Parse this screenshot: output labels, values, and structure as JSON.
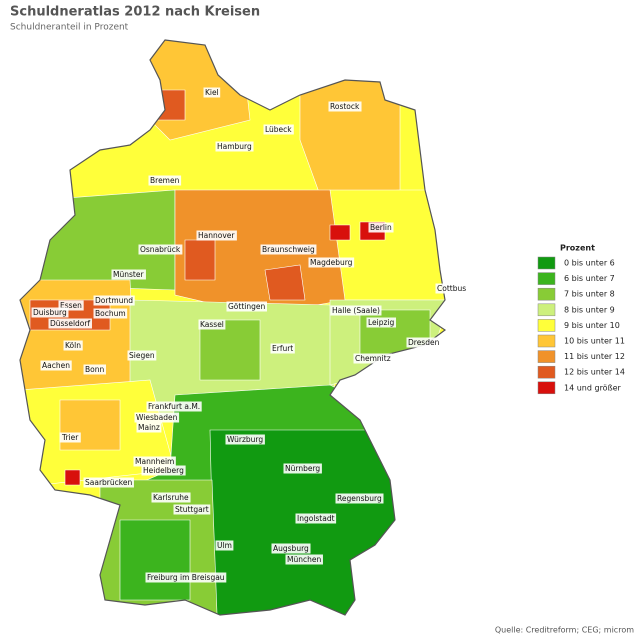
{
  "title": "Schuldneratlas 2012 nach Kreisen",
  "subtitle": "Schuldneranteil in Prozent",
  "legend": {
    "title": "Prozent",
    "items": [
      {
        "label": "0 bis unter 6",
        "color": "#119a11"
      },
      {
        "label": "6 bis unter 7",
        "color": "#3cb41e"
      },
      {
        "label": "7 bis unter 8",
        "color": "#88cc36"
      },
      {
        "label": "8 bis unter 9",
        "color": "#cdf07d"
      },
      {
        "label": "9 bis unter 10",
        "color": "#ffff3a"
      },
      {
        "label": "10 bis unter 11",
        "color": "#ffc636"
      },
      {
        "label": "11 bis unter 12",
        "color": "#f0922a"
      },
      {
        "label": "12 bis unter 14",
        "color": "#e05a20"
      },
      {
        "label": "14 und größer",
        "color": "#d8100c"
      }
    ]
  },
  "cities": [
    "Kiel",
    "Rostock",
    "Lübeck",
    "Hamburg",
    "Bremen",
    "Berlin",
    "Hannover",
    "Osnabrück",
    "Braunschweig",
    "Magdeburg",
    "Münster",
    "Cottbus",
    "Dortmund",
    "Essen",
    "Bochum",
    "Duisburg",
    "Göttingen",
    "Halle (Saale)",
    "Düsseldorf",
    "Kassel",
    "Leipzig",
    "Köln",
    "Dresden",
    "Siegen",
    "Erfurt",
    "Chemnitz",
    "Aachen",
    "Bonn",
    "Frankfurt a.M.",
    "Wiesbaden",
    "Mainz",
    "Trier",
    "Würzburg",
    "Mannheim",
    "Heidelberg",
    "Nürnberg",
    "Saarbrücken",
    "Karlsruhe",
    "Regensburg",
    "Stuttgart",
    "Ingolstadt",
    "Ulm",
    "Augsburg",
    "München",
    "Freiburg im Breisgau"
  ],
  "source": "Quelle: Creditreform; CEG; microm"
}
